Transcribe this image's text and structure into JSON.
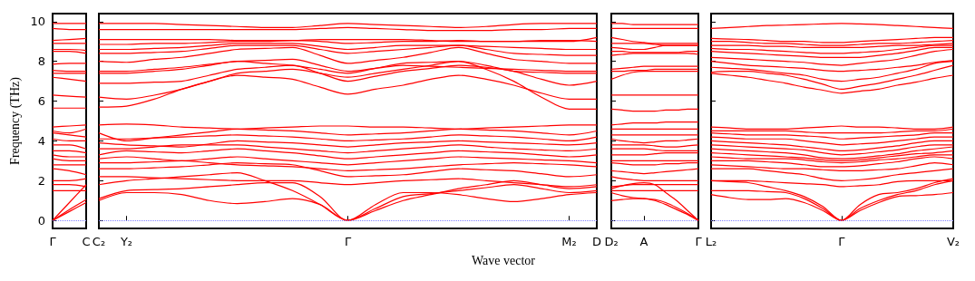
{
  "chart_data": [
    {
      "type": "line",
      "ylabel": "Frequency (THz)",
      "categories": [
        "Γ",
        null,
        "C"
      ],
      "ylim": [
        -0.4,
        10.4
      ],
      "yticks": [
        0,
        2,
        4,
        6,
        8,
        10
      ],
      "marker": "none",
      "ref_lines": [
        {
          "axis": "y",
          "value": 0,
          "color": "#8080ff",
          "line_style": "dotted"
        }
      ],
      "series": [
        {
          "color": "#ff0000",
          "values": [
            0,
            0.45,
            0.9
          ]
        },
        {
          "color": "#ff0000",
          "values": [
            0,
            0.55,
            1.05
          ]
        },
        {
          "color": "#ff0000",
          "values": [
            0,
            0.9,
            1.8
          ]
        },
        {
          "color": "#ff0000",
          "values": [
            1.5,
            1.5,
            1.5
          ]
        },
        {
          "color": "#ff0000",
          "values": [
            1.8,
            1.8,
            1.7
          ]
        },
        {
          "color": "#ff0000",
          "values": [
            2.0,
            2.0,
            2.1
          ]
        },
        {
          "color": "#ff0000",
          "values": [
            2.6,
            2.5,
            2.3
          ]
        },
        {
          "color": "#ff0000",
          "values": [
            2.8,
            2.8,
            2.8
          ]
        },
        {
          "color": "#ff0000",
          "values": [
            3.1,
            3.0,
            3.0
          ]
        },
        {
          "color": "#ff0000",
          "values": [
            3.3,
            3.2,
            3.2
          ]
        },
        {
          "color": "#ff0000",
          "values": [
            3.5,
            3.5,
            3.4
          ]
        },
        {
          "color": "#ff0000",
          "values": [
            3.8,
            3.8,
            3.6
          ]
        },
        {
          "color": "#ff0000",
          "values": [
            4.1,
            4.0,
            4.0
          ]
        },
        {
          "color": "#ff0000",
          "values": [
            4.4,
            4.3,
            4.2
          ]
        },
        {
          "color": "#ff0000",
          "values": [
            4.5,
            4.4,
            4.6
          ]
        },
        {
          "color": "#ff0000",
          "values": [
            4.7,
            4.75,
            4.8
          ]
        },
        {
          "color": "#ff0000",
          "values": [
            5.65,
            5.65,
            5.65
          ]
        },
        {
          "color": "#ff0000",
          "values": [
            6.3,
            6.25,
            6.2
          ]
        },
        {
          "color": "#ff0000",
          "values": [
            7.2,
            7.1,
            7.0
          ]
        },
        {
          "color": "#ff0000",
          "values": [
            7.4,
            7.4,
            7.4
          ]
        },
        {
          "color": "#ff0000",
          "values": [
            7.55,
            7.5,
            7.5
          ]
        },
        {
          "color": "#ff0000",
          "values": [
            7.85,
            7.9,
            7.9
          ]
        },
        {
          "color": "#ff0000",
          "values": [
            8.5,
            8.5,
            8.4
          ]
        },
        {
          "color": "#ff0000",
          "values": [
            8.6,
            8.6,
            8.55
          ]
        },
        {
          "color": "#ff0000",
          "values": [
            8.9,
            8.9,
            8.9
          ]
        },
        {
          "color": "#ff0000",
          "values": [
            9.05,
            9.1,
            9.15
          ]
        },
        {
          "color": "#ff0000",
          "values": [
            9.65,
            9.6,
            9.6
          ]
        },
        {
          "color": "#ff0000",
          "values": [
            9.9,
            9.9,
            9.9
          ]
        }
      ]
    },
    {
      "type": "line",
      "xlabel": "Wave vector",
      "tick_labels": "x",
      "categories": [
        "C₂",
        "Y₂",
        null,
        null,
        null,
        null,
        null,
        null,
        null,
        "Γ",
        null,
        null,
        null,
        null,
        null,
        null,
        null,
        "M₂",
        "D"
      ],
      "ylim": [
        -0.4,
        10.4
      ],
      "yticks": [
        0,
        2,
        4,
        6,
        8,
        10
      ],
      "marker": "none",
      "ref_lines": [
        {
          "axis": "y",
          "value": 0,
          "color": "#8080ff",
          "line_style": "dotted"
        }
      ],
      "series": [
        {
          "color": "#ff0000",
          "values": [
            1.0,
            1.4,
            1.4,
            1.3,
            1.0,
            0.85,
            0.95,
            1.1,
            0.8,
            0,
            0.8,
            1.4,
            1.4,
            1.3,
            1.1,
            0.95,
            1.1,
            1.3,
            1.4
          ]
        },
        {
          "color": "#ff0000",
          "values": [
            1.1,
            1.5,
            1.55,
            1.6,
            1.7,
            1.8,
            1.9,
            1.9,
            1.2,
            0,
            0.6,
            1.2,
            1.35,
            1.5,
            1.65,
            1.8,
            1.6,
            1.4,
            1.5
          ]
        },
        {
          "color": "#ff0000",
          "values": [
            1.8,
            2.0,
            2.1,
            2.2,
            2.3,
            2.4,
            2.0,
            1.5,
            0.8,
            0,
            0.5,
            1.0,
            1.3,
            1.6,
            1.8,
            2.0,
            1.8,
            1.6,
            1.7
          ]
        },
        {
          "color": "#ff0000",
          "values": [
            2.2,
            2.2,
            2.15,
            2.1,
            2.05,
            2.0,
            2.0,
            2.0,
            1.9,
            1.8,
            1.9,
            2.0,
            2.05,
            2.1,
            2.0,
            1.9,
            1.8,
            1.7,
            1.8
          ]
        },
        {
          "color": "#ff0000",
          "values": [
            2.6,
            2.6,
            2.65,
            2.7,
            2.8,
            2.9,
            2.85,
            2.8,
            2.5,
            2.2,
            2.25,
            2.3,
            2.45,
            2.6,
            2.55,
            2.5,
            2.35,
            2.2,
            2.3
          ]
        },
        {
          "color": "#ff0000",
          "values": [
            2.9,
            2.9,
            2.95,
            3.0,
            2.9,
            2.8,
            2.75,
            2.7,
            2.6,
            2.5,
            2.55,
            2.6,
            2.7,
            2.8,
            2.85,
            2.9,
            2.85,
            2.8,
            2.7
          ]
        },
        {
          "color": "#ff0000",
          "values": [
            3.1,
            3.2,
            3.1,
            3.0,
            3.1,
            3.2,
            3.1,
            3.0,
            2.9,
            2.8,
            2.9,
            3.0,
            3.1,
            3.2,
            3.15,
            3.1,
            3.05,
            3.0,
            2.9
          ]
        },
        {
          "color": "#ff0000",
          "values": [
            3.3,
            3.5,
            3.45,
            3.4,
            3.5,
            3.6,
            3.5,
            3.4,
            3.25,
            3.1,
            3.2,
            3.3,
            3.4,
            3.5,
            3.45,
            3.4,
            3.3,
            3.2,
            3.3
          ]
        },
        {
          "color": "#ff0000",
          "values": [
            3.6,
            3.6,
            3.7,
            3.8,
            3.8,
            3.8,
            3.7,
            3.6,
            3.5,
            3.4,
            3.5,
            3.6,
            3.7,
            3.8,
            3.7,
            3.6,
            3.55,
            3.5,
            3.6
          ]
        },
        {
          "color": "#ff0000",
          "values": [
            3.9,
            3.8,
            3.75,
            3.7,
            3.85,
            4.0,
            3.95,
            3.9,
            3.8,
            3.7,
            3.8,
            3.9,
            3.95,
            4.0,
            3.95,
            3.9,
            3.85,
            3.8,
            3.9
          ]
        },
        {
          "color": "#ff0000",
          "values": [
            4.1,
            4.1,
            4.15,
            4.2,
            4.25,
            4.3,
            4.25,
            4.2,
            4.1,
            4.0,
            4.05,
            4.1,
            4.2,
            4.3,
            4.25,
            4.2,
            4.1,
            4.0,
            4.2
          ]
        },
        {
          "color": "#ff0000",
          "values": [
            4.4,
            4.0,
            4.15,
            4.3,
            4.45,
            4.6,
            4.55,
            4.5,
            4.4,
            4.3,
            4.35,
            4.4,
            4.5,
            4.6,
            4.55,
            4.5,
            4.4,
            4.3,
            4.5
          ]
        },
        {
          "color": "#ff0000",
          "values": [
            4.8,
            4.85,
            4.8,
            4.7,
            4.65,
            4.6,
            4.65,
            4.7,
            4.75,
            4.75,
            4.7,
            4.7,
            4.65,
            4.6,
            4.65,
            4.7,
            4.75,
            4.8,
            4.8
          ]
        },
        {
          "color": "#ff0000",
          "values": [
            5.7,
            5.75,
            6.1,
            6.6,
            7.0,
            7.3,
            7.2,
            7.1,
            6.7,
            6.35,
            6.6,
            6.8,
            7.1,
            7.3,
            7.1,
            6.8,
            6.4,
            6.1,
            6.1
          ]
        },
        {
          "color": "#ff0000",
          "values": [
            6.2,
            6.1,
            6.3,
            6.6,
            7.0,
            7.4,
            7.5,
            7.6,
            7.4,
            7.2,
            7.4,
            7.6,
            7.8,
            8.0,
            7.6,
            7.0,
            6.2,
            5.6,
            5.6
          ]
        },
        {
          "color": "#ff0000",
          "values": [
            6.9,
            6.9,
            6.95,
            7.0,
            7.3,
            7.6,
            7.7,
            7.8,
            7.4,
            7.0,
            7.25,
            7.5,
            7.65,
            7.8,
            7.7,
            7.5,
            7.1,
            6.8,
            7.0
          ]
        },
        {
          "color": "#ff0000",
          "values": [
            7.4,
            7.4,
            7.5,
            7.6,
            7.8,
            8.0,
            7.9,
            7.8,
            7.6,
            7.4,
            7.65,
            7.9,
            7.95,
            8.0,
            7.8,
            7.5,
            7.45,
            7.4,
            7.4
          ]
        },
        {
          "color": "#ff0000",
          "values": [
            7.5,
            7.5,
            7.6,
            7.7,
            7.85,
            8.0,
            8.05,
            8.1,
            7.8,
            7.5,
            7.65,
            7.8,
            7.75,
            7.7,
            7.65,
            7.6,
            7.55,
            7.5,
            7.5
          ]
        },
        {
          "color": "#ff0000",
          "values": [
            8.0,
            7.95,
            8.1,
            8.2,
            8.4,
            8.6,
            8.65,
            8.7,
            8.3,
            7.9,
            8.05,
            8.2,
            8.45,
            8.7,
            8.4,
            8.1,
            8.0,
            7.9,
            7.9
          ]
        },
        {
          "color": "#ff0000",
          "values": [
            8.4,
            8.4,
            8.45,
            8.5,
            8.65,
            8.8,
            8.8,
            8.8,
            8.6,
            8.4,
            8.5,
            8.6,
            8.7,
            8.8,
            8.6,
            8.4,
            8.35,
            8.3,
            8.3
          ]
        },
        {
          "color": "#ff0000",
          "values": [
            8.6,
            8.6,
            8.65,
            8.7,
            8.8,
            8.9,
            8.9,
            8.9,
            8.75,
            8.6,
            8.7,
            8.8,
            8.8,
            8.8,
            8.75,
            8.7,
            8.65,
            8.6,
            8.6
          ]
        },
        {
          "color": "#ff0000",
          "values": [
            8.85,
            8.85,
            8.9,
            8.9,
            8.95,
            9.0,
            9.0,
            9.05,
            9.0,
            8.9,
            8.95,
            9.0,
            9.0,
            9.05,
            9.0,
            9.0,
            9.0,
            9.0,
            9.2
          ]
        },
        {
          "color": "#ff0000",
          "values": [
            9.1,
            9.1,
            9.1,
            9.1,
            9.1,
            9.05,
            9.05,
            9.05,
            9.1,
            9.1,
            9.1,
            9.1,
            9.05,
            9.0,
            9.0,
            9.0,
            9.05,
            9.05,
            9.0
          ]
        },
        {
          "color": "#ff0000",
          "values": [
            9.6,
            9.6,
            9.6,
            9.6,
            9.6,
            9.6,
            9.6,
            9.6,
            9.65,
            9.7,
            9.65,
            9.6,
            9.55,
            9.55,
            9.55,
            9.6,
            9.6,
            9.65,
            9.65
          ]
        },
        {
          "color": "#ff0000",
          "values": [
            9.9,
            9.9,
            9.9,
            9.85,
            9.8,
            9.75,
            9.7,
            9.7,
            9.8,
            9.9,
            9.85,
            9.8,
            9.75,
            9.7,
            9.75,
            9.85,
            9.9,
            9.9,
            9.9
          ]
        }
      ]
    },
    {
      "type": "line",
      "tick_labels": "x",
      "categories": [
        "D₂",
        null,
        null,
        "A",
        null,
        null,
        null,
        null,
        "Γ"
      ],
      "ylim": [
        -0.4,
        10.4
      ],
      "yticks": [
        0,
        2,
        4,
        6,
        8,
        10
      ],
      "marker": "none",
      "ref_lines": [
        {
          "axis": "y",
          "value": 0,
          "color": "#8080ff",
          "line_style": "dotted"
        }
      ],
      "series": [
        {
          "color": "#ff0000",
          "values": [
            1.0,
            1.05,
            1.1,
            1.1,
            1.0,
            0.8,
            0.55,
            0.3,
            0
          ]
        },
        {
          "color": "#ff0000",
          "values": [
            1.4,
            1.25,
            1.15,
            1.1,
            1.05,
            0.9,
            0.65,
            0.35,
            0
          ]
        },
        {
          "color": "#ff0000",
          "values": [
            1.6,
            1.75,
            1.85,
            1.9,
            1.8,
            1.4,
            1.0,
            0.5,
            0
          ]
        },
        {
          "color": "#ff0000",
          "values": [
            1.5,
            1.5,
            1.5,
            1.5,
            1.5,
            1.5,
            1.5,
            1.5,
            1.5
          ]
        },
        {
          "color": "#ff0000",
          "values": [
            1.7,
            1.75,
            1.8,
            1.8,
            1.8,
            1.8,
            1.8,
            1.8,
            1.8
          ]
        },
        {
          "color": "#ff0000",
          "values": [
            2.2,
            2.1,
            2.05,
            2.0,
            2.0,
            2.0,
            2.0,
            2.0,
            2.0
          ]
        },
        {
          "color": "#ff0000",
          "values": [
            2.5,
            2.45,
            2.4,
            2.35,
            2.4,
            2.45,
            2.5,
            2.55,
            2.6
          ]
        },
        {
          "color": "#ff0000",
          "values": [
            2.9,
            2.85,
            2.8,
            2.8,
            2.8,
            2.85,
            2.85,
            2.9,
            2.9
          ]
        },
        {
          "color": "#ff0000",
          "values": [
            3.0,
            3.0,
            3.0,
            3.0,
            3.0,
            3.0,
            3.0,
            3.0,
            3.0
          ]
        },
        {
          "color": "#ff0000",
          "values": [
            3.3,
            3.3,
            3.3,
            3.3,
            3.35,
            3.4,
            3.4,
            3.4,
            3.4
          ]
        },
        {
          "color": "#ff0000",
          "values": [
            3.6,
            3.6,
            3.6,
            3.6,
            3.55,
            3.5,
            3.5,
            3.5,
            3.5
          ]
        },
        {
          "color": "#ff0000",
          "values": [
            3.8,
            3.8,
            3.8,
            3.8,
            3.75,
            3.7,
            3.7,
            3.75,
            3.8
          ]
        },
        {
          "color": "#ff0000",
          "values": [
            4.1,
            4.0,
            3.95,
            3.9,
            3.95,
            4.0,
            4.0,
            4.05,
            4.1
          ]
        },
        {
          "color": "#ff0000",
          "values": [
            4.3,
            4.3,
            4.3,
            4.3,
            4.3,
            4.3,
            4.3,
            4.3,
            4.3
          ]
        },
        {
          "color": "#ff0000",
          "values": [
            4.6,
            4.6,
            4.6,
            4.6,
            4.6,
            4.6,
            4.6,
            4.6,
            4.6
          ]
        },
        {
          "color": "#ff0000",
          "values": [
            4.8,
            4.85,
            4.9,
            4.9,
            4.9,
            4.95,
            4.95,
            4.95,
            4.95
          ]
        },
        {
          "color": "#ff0000",
          "values": [
            5.6,
            5.55,
            5.5,
            5.5,
            5.5,
            5.55,
            5.55,
            5.6,
            5.6
          ]
        },
        {
          "color": "#ff0000",
          "values": [
            6.3,
            6.3,
            6.3,
            6.3,
            6.3,
            6.3,
            6.3,
            6.3,
            6.3
          ]
        },
        {
          "color": "#ff0000",
          "values": [
            7.1,
            7.3,
            7.45,
            7.5,
            7.5,
            7.5,
            7.5,
            7.5,
            7.5
          ]
        },
        {
          "color": "#ff0000",
          "values": [
            7.5,
            7.5,
            7.55,
            7.55,
            7.6,
            7.6,
            7.6,
            7.6,
            7.6
          ]
        },
        {
          "color": "#ff0000",
          "values": [
            7.6,
            7.65,
            7.7,
            7.75,
            7.75,
            7.75,
            7.75,
            7.75,
            7.75
          ]
        },
        {
          "color": "#ff0000",
          "values": [
            8.3,
            8.35,
            8.4,
            8.4,
            8.4,
            8.4,
            8.4,
            8.4,
            8.35
          ]
        },
        {
          "color": "#ff0000",
          "values": [
            8.5,
            8.5,
            8.45,
            8.45,
            8.45,
            8.45,
            8.45,
            8.5,
            8.5
          ]
        },
        {
          "color": "#ff0000",
          "values": [
            8.7,
            8.65,
            8.6,
            8.6,
            8.7,
            8.8,
            8.8,
            8.8,
            8.8
          ]
        },
        {
          "color": "#ff0000",
          "values": [
            8.9,
            8.9,
            8.9,
            8.9,
            8.85,
            8.8,
            8.8,
            8.8,
            8.8
          ]
        },
        {
          "color": "#ff0000",
          "values": [
            9.2,
            9.1,
            9.0,
            8.95,
            8.9,
            8.9,
            8.9,
            8.9,
            8.9
          ]
        },
        {
          "color": "#ff0000",
          "values": [
            9.65,
            9.65,
            9.65,
            9.65,
            9.65,
            9.65,
            9.65,
            9.65,
            9.65
          ]
        },
        {
          "color": "#ff0000",
          "values": [
            9.9,
            9.9,
            9.85,
            9.85,
            9.85,
            9.85,
            9.85,
            9.85,
            9.85
          ]
        }
      ]
    },
    {
      "type": "line",
      "tick_labels": "x",
      "categories": [
        "L₂",
        null,
        null,
        null,
        null,
        null,
        null,
        "Γ",
        null,
        null,
        null,
        null,
        null,
        "V₂"
      ],
      "ylim": [
        -0.4,
        10.4
      ],
      "yticks": [
        0,
        2,
        4,
        6,
        8,
        10
      ],
      "marker": "none",
      "ref_lines": [
        {
          "axis": "y",
          "value": 0,
          "color": "#8080ff",
          "line_style": "dotted"
        }
      ],
      "series": [
        {
          "color": "#ff0000",
          "values": [
            1.3,
            1.15,
            1.05,
            1.05,
            1.1,
            0.9,
            0.5,
            0,
            0.5,
            0.9,
            1.2,
            1.25,
            1.3,
            1.4
          ]
        },
        {
          "color": "#ff0000",
          "values": [
            1.5,
            1.5,
            1.5,
            1.45,
            1.4,
            1.1,
            0.6,
            0,
            0.6,
            1.0,
            1.3,
            1.5,
            1.8,
            2.0
          ]
        },
        {
          "color": "#ff0000",
          "values": [
            2.0,
            1.95,
            1.9,
            1.7,
            1.5,
            1.2,
            0.7,
            0,
            0.8,
            1.3,
            1.4,
            1.6,
            1.9,
            2.1
          ]
        },
        {
          "color": "#ff0000",
          "values": [
            2.0,
            2.0,
            2.0,
            1.95,
            1.9,
            1.85,
            1.8,
            1.7,
            1.75,
            1.8,
            1.95,
            2.0,
            2.0,
            2.0
          ]
        },
        {
          "color": "#ff0000",
          "values": [
            2.6,
            2.6,
            2.6,
            2.5,
            2.4,
            2.3,
            2.1,
            2.0,
            2.05,
            2.15,
            2.3,
            2.4,
            2.5,
            2.6
          ]
        },
        {
          "color": "#ff0000",
          "values": [
            2.8,
            2.75,
            2.7,
            2.65,
            2.6,
            2.6,
            2.55,
            2.5,
            2.5,
            2.55,
            2.6,
            2.75,
            2.9,
            2.8
          ]
        },
        {
          "color": "#ff0000",
          "values": [
            3.0,
            3.0,
            3.0,
            2.95,
            2.9,
            2.8,
            2.7,
            2.7,
            2.75,
            2.85,
            2.95,
            3.1,
            3.2,
            3.1
          ]
        },
        {
          "color": "#ff0000",
          "values": [
            3.2,
            3.15,
            3.1,
            3.1,
            3.1,
            3.05,
            2.95,
            2.9,
            2.95,
            3.05,
            3.1,
            3.2,
            3.3,
            3.3
          ]
        },
        {
          "color": "#ff0000",
          "values": [
            3.4,
            3.35,
            3.3,
            3.25,
            3.2,
            3.15,
            3.05,
            3.0,
            3.05,
            3.15,
            3.25,
            3.35,
            3.4,
            3.5
          ]
        },
        {
          "color": "#ff0000",
          "values": [
            3.6,
            3.55,
            3.5,
            3.45,
            3.4,
            3.3,
            3.15,
            3.1,
            3.15,
            3.25,
            3.35,
            3.5,
            3.6,
            3.7
          ]
        },
        {
          "color": "#ff0000",
          "values": [
            3.8,
            3.75,
            3.7,
            3.65,
            3.6,
            3.55,
            3.4,
            3.3,
            3.35,
            3.45,
            3.55,
            3.7,
            3.8,
            3.8
          ]
        },
        {
          "color": "#ff0000",
          "values": [
            4.0,
            3.95,
            3.9,
            3.85,
            3.8,
            3.7,
            3.6,
            3.5,
            3.55,
            3.65,
            3.75,
            3.9,
            4.0,
            4.0
          ]
        },
        {
          "color": "#ff0000",
          "values": [
            4.2,
            4.15,
            4.1,
            4.1,
            4.1,
            4.0,
            3.9,
            3.8,
            3.85,
            3.9,
            4.0,
            4.1,
            4.2,
            4.2
          ]
        },
        {
          "color": "#ff0000",
          "values": [
            4.4,
            4.35,
            4.3,
            4.3,
            4.3,
            4.25,
            4.2,
            4.1,
            4.15,
            4.2,
            4.25,
            4.3,
            4.4,
            4.4
          ]
        },
        {
          "color": "#ff0000",
          "values": [
            4.5,
            4.5,
            4.5,
            4.5,
            4.5,
            4.45,
            4.4,
            4.4,
            4.4,
            4.4,
            4.45,
            4.5,
            4.5,
            4.6
          ]
        },
        {
          "color": "#ff0000",
          "values": [
            4.7,
            4.65,
            4.6,
            4.6,
            4.6,
            4.65,
            4.7,
            4.75,
            4.7,
            4.7,
            4.65,
            4.6,
            4.6,
            4.7
          ]
        },
        {
          "color": "#ff0000",
          "values": [
            7.4,
            7.3,
            7.2,
            7.05,
            6.9,
            6.7,
            6.55,
            6.4,
            6.5,
            6.6,
            6.8,
            6.95,
            7.15,
            7.3
          ]
        },
        {
          "color": "#ff0000",
          "values": [
            7.45,
            7.5,
            7.5,
            7.4,
            7.3,
            7.1,
            6.85,
            6.6,
            6.75,
            6.9,
            7.1,
            7.3,
            7.55,
            7.8
          ]
        },
        {
          "color": "#ff0000",
          "values": [
            7.7,
            7.65,
            7.6,
            7.5,
            7.4,
            7.3,
            7.1,
            7.0,
            7.1,
            7.2,
            7.4,
            7.6,
            7.9,
            8.0
          ]
        },
        {
          "color": "#ff0000",
          "values": [
            8.0,
            7.9,
            7.8,
            7.75,
            7.7,
            7.65,
            7.55,
            7.5,
            7.55,
            7.6,
            7.7,
            7.8,
            7.95,
            8.05
          ]
        },
        {
          "color": "#ff0000",
          "values": [
            8.2,
            8.15,
            8.1,
            8.05,
            8.0,
            7.95,
            7.85,
            7.8,
            7.9,
            8.0,
            8.1,
            8.3,
            8.5,
            8.6
          ]
        },
        {
          "color": "#ff0000",
          "values": [
            8.5,
            8.45,
            8.4,
            8.35,
            8.3,
            8.25,
            8.2,
            8.2,
            8.2,
            8.3,
            8.4,
            8.55,
            8.7,
            8.7
          ]
        },
        {
          "color": "#ff0000",
          "values": [
            8.65,
            8.6,
            8.6,
            8.55,
            8.5,
            8.45,
            8.4,
            8.4,
            8.45,
            8.5,
            8.6,
            8.7,
            8.8,
            8.8
          ]
        },
        {
          "color": "#ff0000",
          "values": [
            8.8,
            8.8,
            8.8,
            8.75,
            8.75,
            8.7,
            8.7,
            8.7,
            8.7,
            8.75,
            8.8,
            8.8,
            8.85,
            8.9
          ]
        },
        {
          "color": "#ff0000",
          "values": [
            9.0,
            9.0,
            8.95,
            8.9,
            8.9,
            8.85,
            8.8,
            8.8,
            8.85,
            8.9,
            8.9,
            8.95,
            9.0,
            9.05
          ]
        },
        {
          "color": "#ff0000",
          "values": [
            9.15,
            9.12,
            9.1,
            9.05,
            9.0,
            9.0,
            8.95,
            8.95,
            9.0,
            9.05,
            9.1,
            9.15,
            9.2,
            9.2
          ]
        },
        {
          "color": "#ff0000",
          "values": [
            9.65,
            9.7,
            9.75,
            9.8,
            9.82,
            9.85,
            9.88,
            9.9,
            9.88,
            9.85,
            9.8,
            9.75,
            9.7,
            9.65
          ]
        }
      ]
    }
  ]
}
